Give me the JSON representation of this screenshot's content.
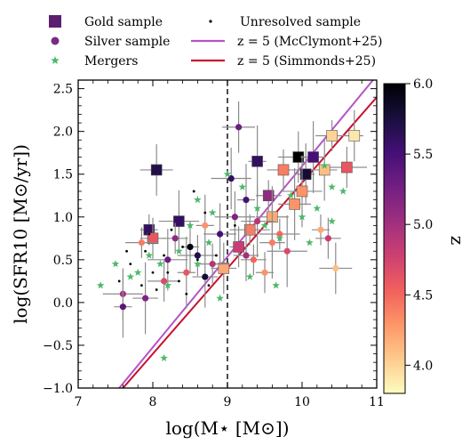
{
  "chart_data": {
    "type": "scatter",
    "xlabel": "log(M⋆ [M⊙])",
    "ylabel": "log(SFR10 [M⊙/yr])",
    "xlim": [
      7,
      11
    ],
    "ylim": [
      -1.0,
      2.6
    ],
    "x_ticks": [
      "7",
      "8",
      "9",
      "10",
      "11"
    ],
    "y_ticks": [
      "−1.0",
      "−0.5",
      "0.0",
      "0.5",
      "1.0",
      "1.5",
      "2.0",
      "2.5"
    ],
    "vline_x": 9,
    "colorbar": {
      "label": "z",
      "range": [
        3.8,
        6.0
      ],
      "ticks": [
        "4.0",
        "4.5",
        "5.0",
        "5.5",
        "6.0"
      ],
      "colors": [
        "#fcfdbf",
        "#feca8d",
        "#fd9668",
        "#f1605d",
        "#cd4071",
        "#9e2f7f",
        "#721f81",
        "#440f76",
        "#180f3d",
        "#000004"
      ]
    },
    "legend": {
      "placement": "above plot",
      "entries": [
        {
          "label": "Gold sample",
          "marker": "square"
        },
        {
          "label": "Silver sample",
          "marker": "circle"
        },
        {
          "label": "Mergers",
          "marker": "star"
        },
        {
          "label": "Unresolved sample",
          "marker": "dot"
        },
        {
          "label": "z = 5 (McClymont+25)",
          "marker": "line",
          "color": "#b553c9"
        },
        {
          "label": "z = 5 (Simmonds+25)",
          "marker": "line",
          "color": "#c8102e"
        }
      ]
    },
    "lines": [
      {
        "name": "z = 5 (McClymont+25)",
        "color": "#b553c9",
        "points": [
          [
            7.55,
            -1.0
          ],
          [
            10.95,
            2.6
          ]
        ]
      },
      {
        "name": "z = 5 (Simmonds+25)",
        "color": "#c8102e",
        "points": [
          [
            7.6,
            -1.0
          ],
          [
            11.0,
            2.4
          ]
        ]
      }
    ],
    "series": [
      {
        "name": "Gold sample",
        "marker": "square",
        "points": [
          [
            7.95,
            0.85,
            5.6
          ],
          [
            8.0,
            0.75,
            4.6
          ],
          [
            8.05,
            1.55,
            5.7
          ],
          [
            8.35,
            0.95,
            5.6
          ],
          [
            9.4,
            1.65,
            5.6
          ],
          [
            9.55,
            1.25,
            5.1
          ],
          [
            9.75,
            1.55,
            4.4
          ],
          [
            9.95,
            1.7,
            6.0
          ],
          [
            10.05,
            1.5,
            5.8
          ],
          [
            10.15,
            1.7,
            5.5
          ],
          [
            10.4,
            1.95,
            4.0
          ],
          [
            10.6,
            1.58,
            4.6
          ],
          [
            10.7,
            1.95,
            3.9
          ],
          [
            10.3,
            1.55,
            4.1
          ],
          [
            9.9,
            1.15,
            4.3
          ],
          [
            9.3,
            0.85,
            4.4
          ],
          [
            9.15,
            0.65,
            4.8
          ],
          [
            8.95,
            0.4,
            4.2
          ],
          [
            9.6,
            1.0,
            4.2
          ],
          [
            10.0,
            1.3,
            4.3
          ]
        ]
      },
      {
        "name": "Silver sample",
        "marker": "circle",
        "points": [
          [
            9.15,
            2.05,
            5.3
          ],
          [
            9.05,
            1.45,
            5.6
          ],
          [
            9.25,
            1.2,
            5.5
          ],
          [
            8.3,
            0.75,
            5.1
          ],
          [
            8.15,
            0.25,
            4.7
          ],
          [
            7.6,
            0.1,
            5.0
          ],
          [
            7.6,
            -0.05,
            5.4
          ],
          [
            7.9,
            0.05,
            5.2
          ],
          [
            7.85,
            0.7,
            4.4
          ],
          [
            8.6,
            0.55,
            5.7
          ],
          [
            8.5,
            0.65,
            6.0
          ],
          [
            8.7,
            0.3,
            5.8
          ],
          [
            9.4,
            0.95,
            4.9
          ],
          [
            9.7,
            0.8,
            4.5
          ],
          [
            9.5,
            0.35,
            4.3
          ],
          [
            9.25,
            0.55,
            5.0
          ],
          [
            8.9,
            0.8,
            5.5
          ],
          [
            9.8,
            0.6,
            4.7
          ],
          [
            10.25,
            0.85,
            4.2
          ],
          [
            10.35,
            0.75,
            4.8
          ],
          [
            10.45,
            0.4,
            4.1
          ],
          [
            8.2,
            0.5,
            5.3
          ],
          [
            8.45,
            0.35,
            4.6
          ],
          [
            9.35,
            0.5,
            4.5
          ],
          [
            8.8,
            0.45,
            4.9
          ],
          [
            9.1,
            1.0,
            5.2
          ],
          [
            8.7,
            0.9,
            4.3
          ],
          [
            9.6,
            0.7,
            4.4
          ]
        ]
      },
      {
        "name": "Mergers",
        "marker": "star",
        "points": [
          [
            8.15,
            -0.65
          ],
          [
            8.2,
            0.2
          ],
          [
            7.8,
            0.35
          ],
          [
            7.5,
            0.45
          ],
          [
            7.3,
            0.2
          ],
          [
            8.6,
            1.2
          ],
          [
            8.8,
            1.05
          ],
          [
            9.2,
            1.35
          ],
          [
            9.4,
            1.1
          ],
          [
            9.5,
            0.9
          ],
          [
            9.7,
            0.75
          ],
          [
            10.0,
            1.0
          ],
          [
            10.2,
            1.1
          ],
          [
            10.4,
            1.35
          ],
          [
            10.3,
            1.6
          ],
          [
            8.35,
            0.6
          ],
          [
            8.6,
            0.45
          ],
          [
            7.95,
            0.55
          ],
          [
            9.3,
            0.3
          ],
          [
            9.65,
            0.2
          ],
          [
            8.9,
            0.05
          ],
          [
            10.1,
            0.7
          ],
          [
            10.4,
            0.95
          ],
          [
            8.5,
            0.9
          ],
          [
            9.0,
            1.5
          ],
          [
            7.7,
            0.3
          ],
          [
            8.1,
            0.45
          ],
          [
            9.85,
            1.25
          ],
          [
            10.55,
            1.3
          ],
          [
            8.75,
            0.7
          ]
        ]
      },
      {
        "name": "Unresolved sample",
        "marker": "dot",
        "points": [
          [
            7.95,
            0.8
          ],
          [
            7.9,
            0.6
          ],
          [
            8.2,
            0.35
          ],
          [
            7.7,
            0.45
          ],
          [
            7.55,
            0.25
          ],
          [
            8.05,
            0.15
          ],
          [
            8.4,
            0.65
          ],
          [
            8.55,
            1.3
          ],
          [
            8.7,
            1.05
          ],
          [
            8.25,
            0.85
          ],
          [
            8.45,
            0.1
          ],
          [
            7.85,
            0.2
          ],
          [
            8.6,
            0.5
          ],
          [
            8.85,
            0.55
          ],
          [
            8.15,
            0.55
          ],
          [
            9.1,
            0.9
          ],
          [
            8.0,
            0.35
          ],
          [
            8.35,
            0.25
          ],
          [
            7.65,
            0.6
          ],
          [
            8.75,
            0.2
          ]
        ]
      }
    ]
  }
}
